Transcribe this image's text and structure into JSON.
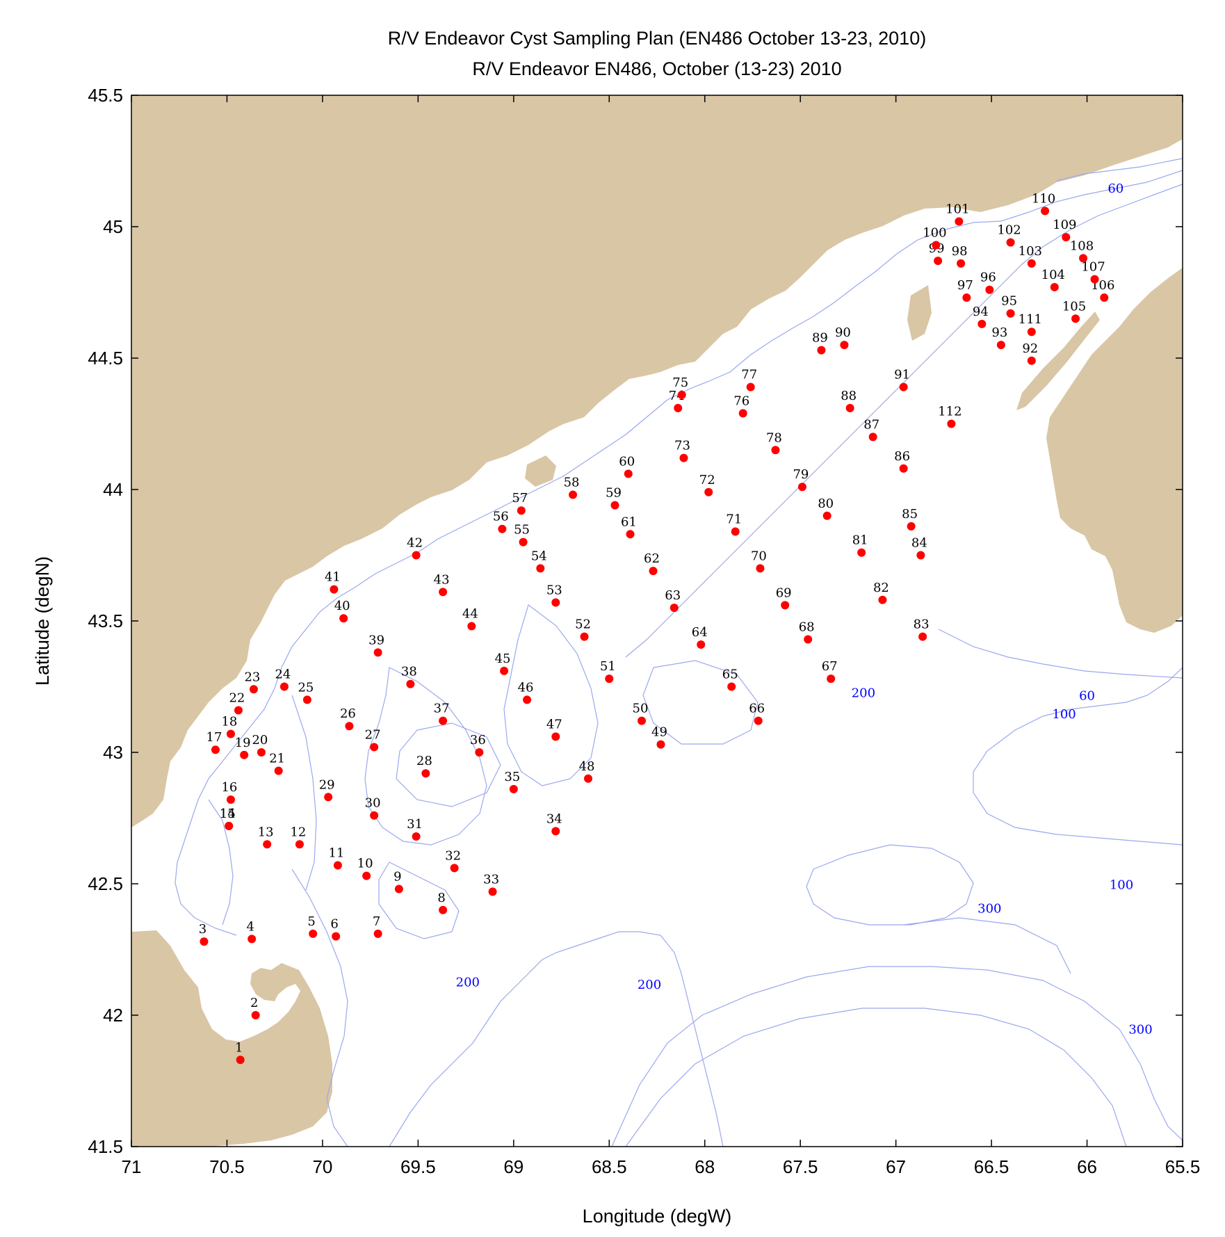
{
  "title_line1": "R/V Endeavor Cyst Sampling Plan (EN486 October 13-23, 2010)",
  "title_line2": "R/V Endeavor EN486, October (13-23) 2010",
  "xlabel": "Longitude (degW)",
  "ylabel": "Latitude (degN)",
  "colors": {
    "land": "#d9c6a5",
    "contour": "#9aa8ee",
    "contour_label": "#0000ff",
    "station": "#ff0000"
  },
  "chart_data": {
    "type": "scatter",
    "xlim": [
      71,
      65.5
    ],
    "ylim": [
      41.5,
      45.5
    ],
    "x_ticks": [
      "71",
      "70.5",
      "70",
      "69.5",
      "69",
      "68.5",
      "68",
      "67.5",
      "67",
      "66.5",
      "66",
      "65.5"
    ],
    "y_ticks": [
      "45.5",
      "45",
      "44.5",
      "44",
      "43.5",
      "43",
      "42.5",
      "42",
      "41.5"
    ],
    "stations": [
      {
        "id": "1",
        "lon": 70.43,
        "lat": 41.83
      },
      {
        "id": "2",
        "lon": 70.35,
        "lat": 42.0
      },
      {
        "id": "3",
        "lon": 70.62,
        "lat": 42.28
      },
      {
        "id": "4",
        "lon": 70.37,
        "lat": 42.29
      },
      {
        "id": "5",
        "lon": 70.05,
        "lat": 42.31
      },
      {
        "id": "6",
        "lon": 69.93,
        "lat": 42.3
      },
      {
        "id": "7",
        "lon": 69.71,
        "lat": 42.31
      },
      {
        "id": "8",
        "lon": 69.37,
        "lat": 42.4
      },
      {
        "id": "9",
        "lon": 69.6,
        "lat": 42.48
      },
      {
        "id": "10",
        "lon": 69.77,
        "lat": 42.53
      },
      {
        "id": "11",
        "lon": 69.92,
        "lat": 42.57
      },
      {
        "id": "12",
        "lon": 70.12,
        "lat": 42.65
      },
      {
        "id": "13",
        "lon": 70.29,
        "lat": 42.65
      },
      {
        "id": "14",
        "lon": 70.49,
        "lat": 42.72
      },
      {
        "id": "15",
        "lon": 70.49,
        "lat": 42.72
      },
      {
        "id": "16",
        "lon": 70.48,
        "lat": 42.82
      },
      {
        "id": "17",
        "lon": 70.56,
        "lat": 43.01
      },
      {
        "id": "18",
        "lon": 70.48,
        "lat": 43.07
      },
      {
        "id": "19",
        "lon": 70.41,
        "lat": 42.99
      },
      {
        "id": "20",
        "lon": 70.32,
        "lat": 43.0
      },
      {
        "id": "21",
        "lon": 70.23,
        "lat": 42.93
      },
      {
        "id": "22",
        "lon": 70.44,
        "lat": 43.16
      },
      {
        "id": "23",
        "lon": 70.36,
        "lat": 43.24
      },
      {
        "id": "24",
        "lon": 70.2,
        "lat": 43.25
      },
      {
        "id": "25",
        "lon": 70.08,
        "lat": 43.2
      },
      {
        "id": "26",
        "lon": 69.86,
        "lat": 43.1
      },
      {
        "id": "27",
        "lon": 69.73,
        "lat": 43.02
      },
      {
        "id": "28",
        "lon": 69.46,
        "lat": 42.92
      },
      {
        "id": "29",
        "lon": 69.97,
        "lat": 42.83
      },
      {
        "id": "30",
        "lon": 69.73,
        "lat": 42.76
      },
      {
        "id": "31",
        "lon": 69.51,
        "lat": 42.68
      },
      {
        "id": "32",
        "lon": 69.31,
        "lat": 42.56
      },
      {
        "id": "33",
        "lon": 69.11,
        "lat": 42.47
      },
      {
        "id": "34",
        "lon": 68.78,
        "lat": 42.7
      },
      {
        "id": "35",
        "lon": 69.0,
        "lat": 42.86
      },
      {
        "id": "36",
        "lon": 69.18,
        "lat": 43.0
      },
      {
        "id": "37",
        "lon": 69.37,
        "lat": 43.12
      },
      {
        "id": "38",
        "lon": 69.54,
        "lat": 43.26
      },
      {
        "id": "39",
        "lon": 69.71,
        "lat": 43.38
      },
      {
        "id": "40",
        "lon": 69.89,
        "lat": 43.51
      },
      {
        "id": "41",
        "lon": 69.94,
        "lat": 43.62
      },
      {
        "id": "42",
        "lon": 69.51,
        "lat": 43.75
      },
      {
        "id": "43",
        "lon": 69.37,
        "lat": 43.61
      },
      {
        "id": "44",
        "lon": 69.22,
        "lat": 43.48
      },
      {
        "id": "45",
        "lon": 69.05,
        "lat": 43.31
      },
      {
        "id": "46",
        "lon": 68.93,
        "lat": 43.2
      },
      {
        "id": "47",
        "lon": 68.78,
        "lat": 43.06
      },
      {
        "id": "48",
        "lon": 68.61,
        "lat": 42.9
      },
      {
        "id": "49",
        "lon": 68.23,
        "lat": 43.03
      },
      {
        "id": "50",
        "lon": 68.33,
        "lat": 43.12
      },
      {
        "id": "51",
        "lon": 68.5,
        "lat": 43.28
      },
      {
        "id": "52",
        "lon": 68.63,
        "lat": 43.44
      },
      {
        "id": "53",
        "lon": 68.78,
        "lat": 43.57
      },
      {
        "id": "54",
        "lon": 68.86,
        "lat": 43.7
      },
      {
        "id": "55",
        "lon": 68.95,
        "lat": 43.8
      },
      {
        "id": "56",
        "lon": 69.06,
        "lat": 43.85
      },
      {
        "id": "57",
        "lon": 68.96,
        "lat": 43.92
      },
      {
        "id": "58",
        "lon": 68.69,
        "lat": 43.98
      },
      {
        "id": "59",
        "lon": 68.47,
        "lat": 43.94
      },
      {
        "id": "60",
        "lon": 68.4,
        "lat": 44.06
      },
      {
        "id": "61",
        "lon": 68.39,
        "lat": 43.83
      },
      {
        "id": "62",
        "lon": 68.27,
        "lat": 43.69
      },
      {
        "id": "63",
        "lon": 68.16,
        "lat": 43.55
      },
      {
        "id": "64",
        "lon": 68.02,
        "lat": 43.41
      },
      {
        "id": "65",
        "lon": 67.86,
        "lat": 43.25
      },
      {
        "id": "66",
        "lon": 67.72,
        "lat": 43.12
      },
      {
        "id": "67",
        "lon": 67.34,
        "lat": 43.28
      },
      {
        "id": "68",
        "lon": 67.46,
        "lat": 43.43
      },
      {
        "id": "69",
        "lon": 67.58,
        "lat": 43.56
      },
      {
        "id": "70",
        "lon": 67.71,
        "lat": 43.7
      },
      {
        "id": "71",
        "lon": 67.84,
        "lat": 43.84
      },
      {
        "id": "72",
        "lon": 67.98,
        "lat": 43.99
      },
      {
        "id": "73",
        "lon": 68.11,
        "lat": 44.12
      },
      {
        "id": "74",
        "lon": 68.14,
        "lat": 44.31
      },
      {
        "id": "75",
        "lon": 68.12,
        "lat": 44.36
      },
      {
        "id": "76",
        "lon": 67.8,
        "lat": 44.29
      },
      {
        "id": "77",
        "lon": 67.76,
        "lat": 44.39
      },
      {
        "id": "78",
        "lon": 67.63,
        "lat": 44.15
      },
      {
        "id": "79",
        "lon": 67.49,
        "lat": 44.01
      },
      {
        "id": "80",
        "lon": 67.36,
        "lat": 43.9
      },
      {
        "id": "81",
        "lon": 67.18,
        "lat": 43.76
      },
      {
        "id": "82",
        "lon": 67.07,
        "lat": 43.58
      },
      {
        "id": "83",
        "lon": 66.86,
        "lat": 43.44
      },
      {
        "id": "84",
        "lon": 66.87,
        "lat": 43.75
      },
      {
        "id": "85",
        "lon": 66.92,
        "lat": 43.86
      },
      {
        "id": "86",
        "lon": 66.96,
        "lat": 44.08
      },
      {
        "id": "87",
        "lon": 67.12,
        "lat": 44.2
      },
      {
        "id": "88",
        "lon": 67.24,
        "lat": 44.31
      },
      {
        "id": "89",
        "lon": 67.39,
        "lat": 44.53
      },
      {
        "id": "90",
        "lon": 67.27,
        "lat": 44.55
      },
      {
        "id": "91",
        "lon": 66.96,
        "lat": 44.39
      },
      {
        "id": "92",
        "lon": 66.29,
        "lat": 44.49
      },
      {
        "id": "93",
        "lon": 66.45,
        "lat": 44.55
      },
      {
        "id": "94",
        "lon": 66.55,
        "lat": 44.63
      },
      {
        "id": "95",
        "lon": 66.4,
        "lat": 44.67
      },
      {
        "id": "96",
        "lon": 66.51,
        "lat": 44.76
      },
      {
        "id": "97",
        "lon": 66.63,
        "lat": 44.73
      },
      {
        "id": "98",
        "lon": 66.66,
        "lat": 44.86
      },
      {
        "id": "99",
        "lon": 66.78,
        "lat": 44.87
      },
      {
        "id": "100",
        "lon": 66.79,
        "lat": 44.93
      },
      {
        "id": "101",
        "lon": 66.67,
        "lat": 45.02
      },
      {
        "id": "102",
        "lon": 66.4,
        "lat": 44.94
      },
      {
        "id": "103",
        "lon": 66.29,
        "lat": 44.86
      },
      {
        "id": "104",
        "lon": 66.17,
        "lat": 44.77
      },
      {
        "id": "105",
        "lon": 66.06,
        "lat": 44.65
      },
      {
        "id": "106",
        "lon": 65.91,
        "lat": 44.73
      },
      {
        "id": "107",
        "lon": 65.96,
        "lat": 44.8
      },
      {
        "id": "108",
        "lon": 66.02,
        "lat": 44.88
      },
      {
        "id": "109",
        "lon": 66.11,
        "lat": 44.96
      },
      {
        "id": "110",
        "lon": 66.22,
        "lat": 45.06
      },
      {
        "id": "111",
        "lon": 66.29,
        "lat": 44.6
      },
      {
        "id": "112",
        "lon": 66.71,
        "lat": 44.25
      }
    ],
    "contour_labels": [
      {
        "text": "60",
        "lon": 65.85,
        "lat": 45.13
      },
      {
        "text": "60",
        "lon": 66.0,
        "lat": 43.2
      },
      {
        "text": "100",
        "lon": 66.12,
        "lat": 43.13
      },
      {
        "text": "200",
        "lon": 67.17,
        "lat": 43.21
      },
      {
        "text": "100",
        "lon": 65.82,
        "lat": 42.48
      },
      {
        "text": "300",
        "lon": 66.51,
        "lat": 42.39
      },
      {
        "text": "200",
        "lon": 69.24,
        "lat": 42.11
      },
      {
        "text": "200",
        "lon": 68.29,
        "lat": 42.1
      },
      {
        "text": "300",
        "lon": 65.72,
        "lat": 41.93
      }
    ]
  }
}
